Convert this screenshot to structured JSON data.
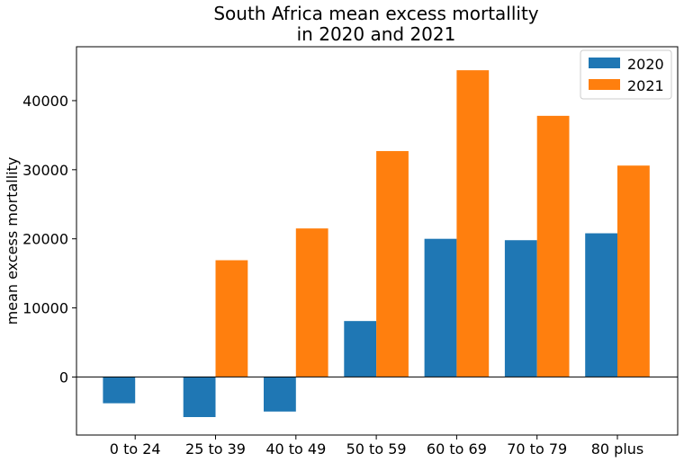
{
  "chart_data": {
    "type": "bar",
    "title_lines": [
      "South Africa mean excess mortallity",
      "in 2020 and 2021"
    ],
    "xlabel": "",
    "ylabel": "mean excess mortallity",
    "categories": [
      "0 to 24",
      "25 to 39",
      "40 to 49",
      "50 to 59",
      "60 to 69",
      "70 to 79",
      "80 plus"
    ],
    "series": [
      {
        "name": "2020",
        "color": "#1f77b4",
        "values": [
          -3800,
          -5800,
          -5000,
          8100,
          20000,
          19800,
          20800
        ]
      },
      {
        "name": "2021",
        "color": "#ff7f0e",
        "values": [
          0,
          16900,
          21500,
          32700,
          44400,
          37800,
          30600
        ]
      }
    ],
    "ylim": [
      -8400,
      47800
    ],
    "yticks": [
      0,
      10000,
      20000,
      30000,
      40000
    ],
    "ytick_labels": [
      "0",
      "10000",
      "20000",
      "30000",
      "40000"
    ],
    "zero_line": true,
    "grid": false,
    "legend_position": "top-right"
  }
}
